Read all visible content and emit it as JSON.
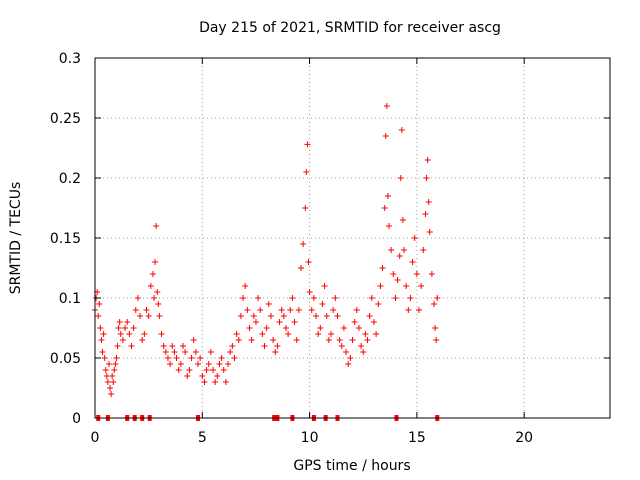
{
  "chart_data": {
    "type": "scatter",
    "title": "Day 215 of 2021, SRMTID for receiver ascg",
    "xlabel": "GPS time / hours",
    "ylabel": "SRMTID / TECUs",
    "xlim": [
      0,
      24
    ],
    "ylim": [
      0,
      0.3
    ],
    "x_ticks": [
      "0",
      "5",
      "10",
      "15",
      "20"
    ],
    "x_tick_values": [
      0,
      5,
      10,
      15,
      20
    ],
    "y_ticks": [
      "0",
      "0.05",
      "0.1",
      "0.15",
      "0.2",
      "0.25",
      "0.3"
    ],
    "y_tick_values": [
      0,
      0.05,
      0.1,
      0.15,
      0.2,
      0.25,
      0.3
    ],
    "grid": true,
    "marker": "+",
    "color": "#ff0000",
    "zero_markers_x": [
      0.15,
      0.6,
      1.5,
      1.85,
      2.2,
      2.55,
      4.8,
      8.35,
      8.5,
      9.2,
      10.2,
      10.75,
      11.3,
      14.05,
      15.95
    ],
    "series": [
      {
        "name": "SRMTID",
        "points": [
          [
            0.0,
            0.09
          ],
          [
            0.05,
            0.1
          ],
          [
            0.1,
            0.105
          ],
          [
            0.15,
            0.085
          ],
          [
            0.2,
            0.095
          ],
          [
            0.25,
            0.075
          ],
          [
            0.3,
            0.065
          ],
          [
            0.35,
            0.055
          ],
          [
            0.4,
            0.07
          ],
          [
            0.45,
            0.05
          ],
          [
            0.5,
            0.04
          ],
          [
            0.55,
            0.035
          ],
          [
            0.6,
            0.03
          ],
          [
            0.65,
            0.045
          ],
          [
            0.7,
            0.025
          ],
          [
            0.75,
            0.02
          ],
          [
            0.8,
            0.035
          ],
          [
            0.85,
            0.03
          ],
          [
            0.9,
            0.04
          ],
          [
            0.95,
            0.045
          ],
          [
            1.0,
            0.05
          ],
          [
            1.05,
            0.06
          ],
          [
            1.1,
            0.075
          ],
          [
            1.15,
            0.08
          ],
          [
            1.2,
            0.07
          ],
          [
            1.3,
            0.065
          ],
          [
            1.4,
            0.075
          ],
          [
            1.5,
            0.08
          ],
          [
            1.6,
            0.07
          ],
          [
            1.7,
            0.06
          ],
          [
            1.8,
            0.075
          ],
          [
            1.9,
            0.09
          ],
          [
            2.0,
            0.1
          ],
          [
            2.1,
            0.085
          ],
          [
            2.2,
            0.065
          ],
          [
            2.3,
            0.07
          ],
          [
            2.4,
            0.09
          ],
          [
            2.5,
            0.085
          ],
          [
            2.6,
            0.11
          ],
          [
            2.7,
            0.12
          ],
          [
            2.75,
            0.1
          ],
          [
            2.8,
            0.13
          ],
          [
            2.85,
            0.16
          ],
          [
            2.9,
            0.105
          ],
          [
            2.95,
            0.095
          ],
          [
            3.0,
            0.085
          ],
          [
            3.1,
            0.07
          ],
          [
            3.2,
            0.06
          ],
          [
            3.3,
            0.055
          ],
          [
            3.4,
            0.05
          ],
          [
            3.5,
            0.045
          ],
          [
            3.6,
            0.06
          ],
          [
            3.7,
            0.055
          ],
          [
            3.8,
            0.05
          ],
          [
            3.9,
            0.04
          ],
          [
            4.0,
            0.045
          ],
          [
            4.1,
            0.06
          ],
          [
            4.2,
            0.055
          ],
          [
            4.3,
            0.035
          ],
          [
            4.4,
            0.04
          ],
          [
            4.5,
            0.05
          ],
          [
            4.6,
            0.065
          ],
          [
            4.7,
            0.055
          ],
          [
            4.8,
            0.045
          ],
          [
            4.9,
            0.05
          ],
          [
            5.0,
            0.035
          ],
          [
            5.1,
            0.03
          ],
          [
            5.2,
            0.04
          ],
          [
            5.3,
            0.045
          ],
          [
            5.4,
            0.055
          ],
          [
            5.5,
            0.04
          ],
          [
            5.6,
            0.03
          ],
          [
            5.7,
            0.035
          ],
          [
            5.8,
            0.045
          ],
          [
            5.9,
            0.05
          ],
          [
            6.0,
            0.04
          ],
          [
            6.1,
            0.03
          ],
          [
            6.2,
            0.045
          ],
          [
            6.3,
            0.055
          ],
          [
            6.4,
            0.06
          ],
          [
            6.5,
            0.05
          ],
          [
            6.6,
            0.07
          ],
          [
            6.7,
            0.065
          ],
          [
            6.8,
            0.085
          ],
          [
            6.9,
            0.1
          ],
          [
            7.0,
            0.11
          ],
          [
            7.1,
            0.09
          ],
          [
            7.2,
            0.075
          ],
          [
            7.3,
            0.065
          ],
          [
            7.4,
            0.085
          ],
          [
            7.5,
            0.08
          ],
          [
            7.6,
            0.1
          ],
          [
            7.7,
            0.09
          ],
          [
            7.8,
            0.07
          ],
          [
            7.9,
            0.06
          ],
          [
            8.0,
            0.075
          ],
          [
            8.1,
            0.095
          ],
          [
            8.2,
            0.085
          ],
          [
            8.3,
            0.065
          ],
          [
            8.4,
            0.055
          ],
          [
            8.5,
            0.06
          ],
          [
            8.6,
            0.08
          ],
          [
            8.7,
            0.09
          ],
          [
            8.8,
            0.085
          ],
          [
            8.9,
            0.075
          ],
          [
            9.0,
            0.07
          ],
          [
            9.1,
            0.09
          ],
          [
            9.2,
            0.1
          ],
          [
            9.3,
            0.08
          ],
          [
            9.4,
            0.065
          ],
          [
            9.5,
            0.09
          ],
          [
            9.6,
            0.125
          ],
          [
            9.7,
            0.145
          ],
          [
            9.8,
            0.175
          ],
          [
            9.85,
            0.205
          ],
          [
            9.9,
            0.228
          ],
          [
            9.95,
            0.13
          ],
          [
            10.0,
            0.105
          ],
          [
            10.1,
            0.09
          ],
          [
            10.2,
            0.1
          ],
          [
            10.3,
            0.085
          ],
          [
            10.4,
            0.07
          ],
          [
            10.5,
            0.075
          ],
          [
            10.6,
            0.095
          ],
          [
            10.7,
            0.11
          ],
          [
            10.8,
            0.085
          ],
          [
            10.9,
            0.065
          ],
          [
            11.0,
            0.07
          ],
          [
            11.1,
            0.09
          ],
          [
            11.2,
            0.1
          ],
          [
            11.3,
            0.085
          ],
          [
            11.4,
            0.065
          ],
          [
            11.5,
            0.06
          ],
          [
            11.6,
            0.075
          ],
          [
            11.7,
            0.055
          ],
          [
            11.8,
            0.045
          ],
          [
            11.9,
            0.05
          ],
          [
            12.0,
            0.065
          ],
          [
            12.1,
            0.08
          ],
          [
            12.2,
            0.09
          ],
          [
            12.3,
            0.075
          ],
          [
            12.4,
            0.06
          ],
          [
            12.5,
            0.055
          ],
          [
            12.6,
            0.07
          ],
          [
            12.7,
            0.065
          ],
          [
            12.8,
            0.085
          ],
          [
            12.9,
            0.1
          ],
          [
            13.0,
            0.08
          ],
          [
            13.1,
            0.07
          ],
          [
            13.2,
            0.095
          ],
          [
            13.3,
            0.11
          ],
          [
            13.4,
            0.125
          ],
          [
            13.5,
            0.175
          ],
          [
            13.55,
            0.235
          ],
          [
            13.6,
            0.26
          ],
          [
            13.65,
            0.185
          ],
          [
            13.7,
            0.16
          ],
          [
            13.8,
            0.14
          ],
          [
            13.9,
            0.12
          ],
          [
            14.0,
            0.1
          ],
          [
            14.1,
            0.115
          ],
          [
            14.2,
            0.135
          ],
          [
            14.25,
            0.2
          ],
          [
            14.3,
            0.24
          ],
          [
            14.35,
            0.165
          ],
          [
            14.4,
            0.14
          ],
          [
            14.5,
            0.11
          ],
          [
            14.6,
            0.09
          ],
          [
            14.7,
            0.1
          ],
          [
            14.8,
            0.13
          ],
          [
            14.9,
            0.15
          ],
          [
            15.0,
            0.12
          ],
          [
            15.1,
            0.09
          ],
          [
            15.2,
            0.11
          ],
          [
            15.3,
            0.14
          ],
          [
            15.4,
            0.17
          ],
          [
            15.45,
            0.2
          ],
          [
            15.5,
            0.215
          ],
          [
            15.55,
            0.18
          ],
          [
            15.6,
            0.155
          ],
          [
            15.7,
            0.12
          ],
          [
            15.8,
            0.095
          ],
          [
            15.85,
            0.075
          ],
          [
            15.9,
            0.065
          ],
          [
            15.95,
            0.1
          ]
        ]
      }
    ]
  }
}
